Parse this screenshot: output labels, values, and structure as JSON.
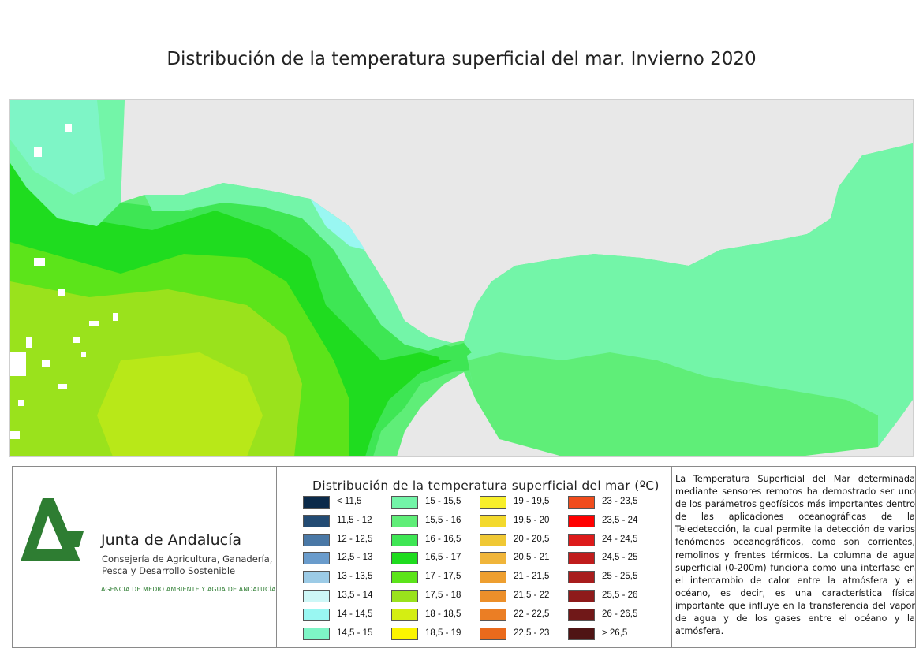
{
  "title": "Distribución de la temperatura superficial del mar. Invierno 2020",
  "colors": {
    "land": "#e8e8e8",
    "logo_green": "#2e7d32"
  },
  "organization": {
    "name": "Junta de Andalucía",
    "department": "Consejería de Agricultura, Ganadería, Pesca y Desarrollo Sostenible",
    "agency": "AGENCIA DE MEDIO AMBIENTE Y AGUA DE ANDALUCÍA"
  },
  "legend": {
    "title": "Distribución de la temperatura superficial del mar (ºC)",
    "items": [
      {
        "label": "< 11,5",
        "color": "#0b2a4a"
      },
      {
        "label": "11,5 - 12",
        "color": "#234b73"
      },
      {
        "label": "12 - 12,5",
        "color": "#4a78a6"
      },
      {
        "label": "12,5 - 13",
        "color": "#6a9ccc"
      },
      {
        "label": "13 - 13,5",
        "color": "#9ccbe6"
      },
      {
        "label": "13,5 - 14",
        "color": "#cdf7f7"
      },
      {
        "label": "14 - 14,5",
        "color": "#99f7f2"
      },
      {
        "label": "14,5 - 15",
        "color": "#7ef5c6"
      },
      {
        "label": "15 - 15,5",
        "color": "#73f5a8"
      },
      {
        "label": "15,5 - 16",
        "color": "#5fee78"
      },
      {
        "label": "16 - 16,5",
        "color": "#3ee654"
      },
      {
        "label": "16,5 - 17",
        "color": "#1fdc1f"
      },
      {
        "label": "17 - 17,5",
        "color": "#5ce41a"
      },
      {
        "label": "17,5 - 18",
        "color": "#9ae21c"
      },
      {
        "label": "18 - 18,5",
        "color": "#d4ee12"
      },
      {
        "label": "18,5 - 19",
        "color": "#fcf500"
      },
      {
        "label": "19 - 19,5",
        "color": "#f8ef2a"
      },
      {
        "label": "19,5 - 20",
        "color": "#f3d92c"
      },
      {
        "label": "20 - 20,5",
        "color": "#f0c834"
      },
      {
        "label": "20,5 - 21",
        "color": "#f0b53a"
      },
      {
        "label": "21 - 21,5",
        "color": "#ee9f30"
      },
      {
        "label": "21,5 - 22",
        "color": "#ec8f2a"
      },
      {
        "label": "22 - 22,5",
        "color": "#eb7e24"
      },
      {
        "label": "22,5 - 23",
        "color": "#ea6a1c"
      },
      {
        "label": "23 - 23,5",
        "color": "#f04c1c"
      },
      {
        "label": "23,5 - 24",
        "color": "#ff0000"
      },
      {
        "label": "24 - 24,5",
        "color": "#dd1a1a"
      },
      {
        "label": "24,5 - 25",
        "color": "#c01c1c"
      },
      {
        "label": "25 - 25,5",
        "color": "#a81c1c"
      },
      {
        "label": "25,5 - 26",
        "color": "#8e1a1a"
      },
      {
        "label": "26 - 26,5",
        "color": "#701818"
      },
      {
        "label": "> 26,5",
        "color": "#4f1414"
      }
    ]
  },
  "description": "La Temperatura Superficial del Mar determinada mediante sensores remotos ha demostrado ser uno de los parámetros geofísicos más importantes dentro de las aplicaciones oceanográficas de la Teledetección, la cual permite la detección de varios fenómenos oceanográficos, como son corrientes, remolinos y frentes térmicos. La columna de agua superficial (0-200m) funciona como una interfase en el intercambio de calor entre la atmósfera y el océano, es decir, es una característica física importante que influye en la transferencia del vapor de agua y de los gases entre el océano y la atmósfera."
}
